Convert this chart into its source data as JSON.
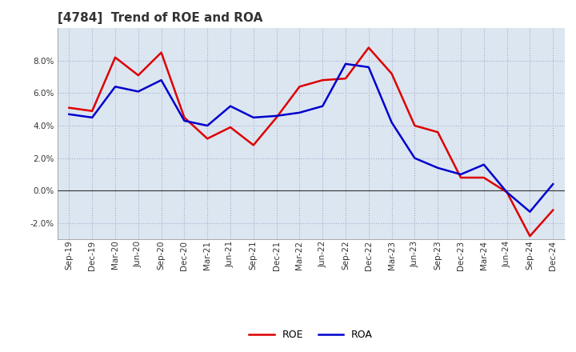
{
  "title": "[4784]  Trend of ROE and ROA",
  "labels": [
    "Sep-19",
    "Dec-19",
    "Mar-20",
    "Jun-20",
    "Sep-20",
    "Dec-20",
    "Mar-21",
    "Jun-21",
    "Sep-21",
    "Dec-21",
    "Mar-22",
    "Jun-22",
    "Sep-22",
    "Dec-22",
    "Mar-23",
    "Jun-23",
    "Sep-23",
    "Dec-23",
    "Mar-24",
    "Jun-24",
    "Sep-24",
    "Dec-24"
  ],
  "roe": [
    5.1,
    4.9,
    8.2,
    7.1,
    8.5,
    4.5,
    3.2,
    3.9,
    2.8,
    4.5,
    6.4,
    6.8,
    6.9,
    8.8,
    7.2,
    4.0,
    3.6,
    0.8,
    0.8,
    -0.1,
    -2.8,
    -1.2
  ],
  "roa": [
    4.7,
    4.5,
    6.4,
    6.1,
    6.8,
    4.3,
    4.0,
    5.2,
    4.5,
    4.6,
    4.8,
    5.2,
    7.8,
    7.6,
    4.2,
    2.0,
    1.4,
    1.0,
    1.6,
    -0.1,
    -1.3,
    0.4
  ],
  "roe_color": "#dd0000",
  "roa_color": "#0000cc",
  "background_color": "#ffffff",
  "plot_bg_color": "#dce6f1",
  "grid_color": "#aaaacc",
  "ylim": [
    -3.0,
    10.0
  ],
  "yticks": [
    -2.0,
    0.0,
    2.0,
    4.0,
    6.0,
    8.0
  ],
  "line_width": 1.8,
  "title_fontsize": 11,
  "tick_fontsize": 7.5,
  "legend_fontsize": 9
}
